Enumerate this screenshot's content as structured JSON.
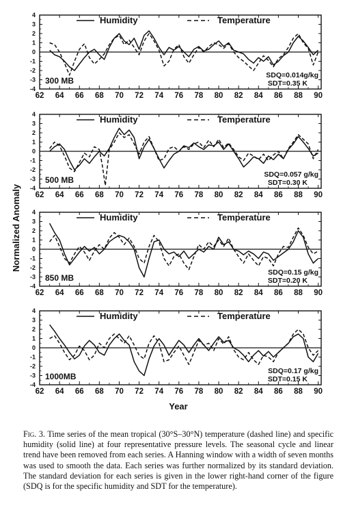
{
  "ylabel": "Normalized Anomaly",
  "xlabel": "Year",
  "xticks": [
    "62",
    "64",
    "66",
    "68",
    "70",
    "72",
    "74",
    "76",
    "78",
    "80",
    "82",
    "84",
    "86",
    "88",
    "90"
  ],
  "yticks": [
    "4",
    "3",
    "2",
    "1",
    "0",
    "-1",
    "-2",
    "-3",
    "-4"
  ],
  "legend": {
    "solid": "Humidity",
    "dashed": "Temperature"
  },
  "caption": {
    "label": "Fig. 3.",
    "text": "Time series of the mean tropical (30°S–30°N) temperature (dashed line) and specific humidity (solid line) at four representative pressure levels. The seasonal cycle and linear trend have been removed from each series. A Hanning window with a width of seven months was used to smooth the data. Each series was further normalized by its standard deviation. The standard deviation for each series is given in the lower right-hand corner of the figure (SDQ is for the specific humidity and SDT for the temperature)."
  },
  "chart_data": [
    {
      "type": "line",
      "panel_label": "300 MB",
      "sd_q": "SDQ=0.014g/kg",
      "sd_t": "SDT=0.35 K",
      "x_range": [
        62,
        90
      ],
      "ylim": [
        -4,
        4
      ],
      "series": [
        {
          "name": "Humidity",
          "style": "solid",
          "x": [
            63,
            63.5,
            64,
            64.5,
            65,
            65.5,
            66,
            66.5,
            67,
            67.5,
            68,
            68.5,
            69,
            69.5,
            70,
            70.5,
            71,
            71.5,
            72,
            72.5,
            73,
            73.5,
            74,
            74.5,
            75,
            75.5,
            76,
            76.5,
            77,
            77.5,
            78,
            78.5,
            79,
            79.5,
            80,
            80.5,
            81,
            81.5,
            82,
            82.5,
            83,
            83.5,
            84,
            84.5,
            85,
            85.5,
            86,
            86.5,
            87,
            87.5,
            88,
            88.5,
            89,
            89.5,
            90
          ],
          "values": [
            0.2,
            -0.3,
            -0.5,
            -1.0,
            -1.6,
            -2.0,
            -1.3,
            -0.6,
            0.0,
            0.3,
            -0.3,
            -0.8,
            0.5,
            1.5,
            2.0,
            1.2,
            0.8,
            1.5,
            0.3,
            1.8,
            2.3,
            1.5,
            0.5,
            -0.3,
            0.5,
            0.2,
            0.6,
            0.0,
            -0.5,
            0.3,
            0.6,
            0.1,
            0.3,
            0.8,
            1.2,
            0.6,
            1.0,
            0.2,
            0.0,
            -0.2,
            -0.8,
            -1.2,
            -0.6,
            -1.0,
            -0.5,
            -1.4,
            -1.0,
            -0.4,
            0.0,
            1.0,
            1.7,
            1.2,
            0.5,
            -0.3,
            0.2
          ]
        },
        {
          "name": "Temperature",
          "style": "dashed",
          "x": [
            63,
            63.5,
            64,
            64.5,
            65,
            65.5,
            66,
            66.5,
            67,
            67.5,
            68,
            68.5,
            69,
            69.5,
            70,
            70.5,
            71,
            71.5,
            72,
            72.5,
            73,
            73.5,
            74,
            74.5,
            75,
            75.5,
            76,
            76.5,
            77,
            77.5,
            78,
            78.5,
            79,
            79.5,
            80,
            80.5,
            81,
            81.5,
            82,
            82.5,
            83,
            83.5,
            84,
            84.5,
            85,
            85.5,
            86,
            86.5,
            87,
            87.5,
            88,
            88.5,
            89,
            89.5,
            90
          ],
          "values": [
            1.0,
            0.8,
            0.0,
            -1.2,
            -2.5,
            -1.0,
            0.3,
            0.9,
            -0.6,
            -1.3,
            -0.8,
            -0.2,
            0.8,
            1.5,
            1.8,
            0.8,
            1.3,
            0.5,
            -0.3,
            1.2,
            2.0,
            1.2,
            0.2,
            -1.5,
            -1.0,
            0.3,
            0.8,
            -0.5,
            -1.2,
            -0.3,
            0.5,
            0.0,
            0.6,
            1.0,
            0.8,
            0.4,
            0.9,
            0.0,
            -0.6,
            -1.0,
            -1.5,
            -2.0,
            -1.2,
            -0.4,
            -0.9,
            -1.6,
            -0.7,
            -0.3,
            0.5,
            1.5,
            2.0,
            1.0,
            0.4,
            -1.4,
            0.0
          ]
        }
      ]
    },
    {
      "type": "line",
      "panel_label": "500 MB",
      "sd_q": "SDQ=0.057 g/kg",
      "sd_t": "SDT=0.30 K",
      "x_range": [
        62,
        90
      ],
      "ylim": [
        -4,
        4
      ],
      "series": [
        {
          "name": "Humidity",
          "style": "solid",
          "x": [
            63,
            63.5,
            64,
            64.5,
            65,
            65.5,
            66,
            66.5,
            67,
            67.5,
            68,
            68.5,
            69,
            69.5,
            70,
            70.5,
            71,
            71.5,
            72,
            72.5,
            73,
            73.5,
            74,
            74.5,
            75,
            75.5,
            76,
            76.5,
            77,
            77.5,
            78,
            78.5,
            79,
            79.5,
            80,
            80.5,
            81,
            81.5,
            82,
            82.5,
            83,
            83.5,
            84,
            84.5,
            85,
            85.5,
            86,
            86.5,
            87,
            87.5,
            88,
            88.5,
            89,
            89.5,
            90
          ],
          "values": [
            0.0,
            0.5,
            0.8,
            0.2,
            -1.0,
            -2.0,
            -1.5,
            -0.8,
            -1.3,
            -0.6,
            0.0,
            -0.5,
            0.3,
            1.5,
            2.5,
            1.8,
            2.3,
            1.5,
            -0.8,
            0.5,
            1.3,
            0.3,
            -0.8,
            -1.8,
            -1.0,
            -0.3,
            0.0,
            0.6,
            0.4,
            0.9,
            0.5,
            0.2,
            0.7,
            0.6,
            1.0,
            0.2,
            0.8,
            0.0,
            -0.8,
            -1.7,
            -1.2,
            -0.6,
            -0.8,
            -1.3,
            -0.5,
            -0.9,
            -0.3,
            -0.8,
            0.2,
            0.8,
            1.6,
            1.0,
            0.3,
            -0.5,
            -0.2
          ]
        },
        {
          "name": "Temperature",
          "style": "dashed",
          "x": [
            63,
            63.5,
            64,
            64.5,
            65,
            65.5,
            66,
            66.5,
            67,
            67.5,
            68,
            68.3,
            68.6,
            69,
            69.5,
            70,
            70.5,
            71,
            71.5,
            72,
            72.5,
            73,
            73.5,
            74,
            74.5,
            75,
            75.5,
            76,
            76.5,
            77,
            77.5,
            78,
            78.5,
            79,
            79.5,
            80,
            80.5,
            81,
            81.5,
            82,
            82.5,
            83,
            83.5,
            84,
            84.5,
            85,
            85.5,
            86,
            86.5,
            87,
            87.5,
            88,
            88.5,
            89,
            89.5,
            90
          ],
          "values": [
            0.3,
            1.0,
            0.6,
            -0.5,
            -1.8,
            -2.2,
            -1.2,
            -0.2,
            -0.6,
            0.5,
            0.2,
            -1.5,
            -3.7,
            0.2,
            1.0,
            2.0,
            1.5,
            1.8,
            0.8,
            -0.3,
            1.0,
            1.6,
            0.3,
            -1.0,
            -0.8,
            0.3,
            0.5,
            0.0,
            0.5,
            0.2,
            0.8,
            1.0,
            0.4,
            1.2,
            0.5,
            1.3,
            0.4,
            0.9,
            0.2,
            -0.6,
            -1.0,
            -0.2,
            -0.5,
            -0.9,
            -0.3,
            -1.0,
            -0.4,
            0.0,
            -0.8,
            0.3,
            1.0,
            1.8,
            1.3,
            0.8,
            -0.8,
            0.2
          ]
        }
      ]
    },
    {
      "type": "line",
      "panel_label": "850 MB",
      "sd_q": "SDQ=0.15 g/kg",
      "sd_t": "SDT=0.20 K",
      "x_range": [
        62,
        90
      ],
      "ylim": [
        -4,
        4
      ],
      "series": [
        {
          "name": "Humidity",
          "style": "solid",
          "x": [
            63,
            63.5,
            64,
            64.5,
            65,
            65.5,
            66,
            66.5,
            67,
            67.5,
            68,
            68.5,
            69,
            69.5,
            70,
            70.5,
            71,
            71.5,
            72,
            72.5,
            73,
            73.5,
            74,
            74.5,
            75,
            75.5,
            76,
            76.5,
            77,
            77.5,
            78,
            78.5,
            79,
            79.5,
            80,
            80.5,
            81,
            81.5,
            82,
            82.5,
            83,
            83.5,
            84,
            84.5,
            85,
            85.5,
            86,
            86.5,
            87,
            87.5,
            88,
            88.5,
            89,
            89.5,
            90
          ],
          "values": [
            2.8,
            1.8,
            1.0,
            -0.5,
            -1.7,
            -1.0,
            -0.3,
            0.3,
            -0.2,
            0.2,
            -0.5,
            0.0,
            0.8,
            1.2,
            1.5,
            1.3,
            0.8,
            0.0,
            -2.0,
            -3.0,
            -1.0,
            0.8,
            1.0,
            0.0,
            -0.5,
            -0.3,
            -0.8,
            -0.2,
            -1.0,
            -0.5,
            0.0,
            -0.3,
            0.3,
            0.0,
            1.3,
            0.5,
            0.8,
            0.0,
            -0.2,
            -0.6,
            -0.2,
            -0.5,
            -1.0,
            -0.3,
            -0.5,
            -1.2,
            -0.8,
            -0.4,
            0.0,
            0.8,
            2.0,
            1.3,
            -0.5,
            -1.5,
            -1.0
          ]
        },
        {
          "name": "Temperature",
          "style": "dashed",
          "x": [
            63,
            63.5,
            64,
            64.5,
            65,
            65.5,
            66,
            66.5,
            67,
            67.5,
            68,
            68.5,
            69,
            69.5,
            70,
            70.5,
            71,
            71.5,
            72,
            72.5,
            73,
            73.5,
            74,
            74.5,
            75,
            75.5,
            76,
            76.5,
            77,
            77.5,
            78,
            78.5,
            79,
            79.5,
            80,
            80.5,
            81,
            81.5,
            82,
            82.5,
            83,
            83.5,
            84,
            84.5,
            85,
            85.5,
            86,
            86.5,
            87,
            87.5,
            88,
            88.5,
            89,
            89.5,
            90
          ],
          "values": [
            0.8,
            1.5,
            0.3,
            -1.0,
            -1.5,
            -0.5,
            0.3,
            -0.3,
            -1.2,
            -0.2,
            0.5,
            0.0,
            1.2,
            1.8,
            1.3,
            0.5,
            1.2,
            0.3,
            -1.0,
            -1.5,
            0.3,
            1.5,
            0.8,
            -1.0,
            -1.8,
            -0.8,
            -0.5,
            -1.5,
            -2.2,
            -0.8,
            0.5,
            0.0,
            0.8,
            0.3,
            1.0,
            0.3,
            1.2,
            0.0,
            -0.8,
            -1.5,
            -0.5,
            -1.2,
            -1.8,
            -0.8,
            -1.0,
            -1.8,
            -0.5,
            0.3,
            0.2,
            1.3,
            2.3,
            1.5,
            0.2,
            -0.5,
            -0.2
          ]
        }
      ]
    },
    {
      "type": "line",
      "panel_label": "1000MB",
      "sd_q": "SDQ=0.17 g/kg",
      "sd_t": "SDT=0.15 K",
      "x_range": [
        62,
        90
      ],
      "ylim": [
        -4,
        4
      ],
      "series": [
        {
          "name": "Humidity",
          "style": "solid",
          "x": [
            63,
            63.5,
            64,
            64.5,
            65,
            65.5,
            66,
            66.5,
            67,
            67.5,
            68,
            68.5,
            69,
            69.5,
            70,
            70.5,
            71,
            71.5,
            72,
            72.5,
            73,
            73.5,
            74,
            74.5,
            75,
            75.5,
            76,
            76.5,
            77,
            77.5,
            78,
            78.5,
            79,
            79.5,
            80,
            80.5,
            81,
            81.5,
            82,
            82.5,
            83,
            83.5,
            84,
            84.5,
            85,
            85.5,
            86,
            86.5,
            87,
            87.5,
            88,
            88.5,
            89,
            89.5,
            90
          ],
          "values": [
            2.5,
            1.8,
            1.0,
            0.3,
            -0.5,
            -1.2,
            -0.8,
            0.2,
            0.8,
            0.3,
            -0.5,
            -0.8,
            0.3,
            1.0,
            1.5,
            0.8,
            0.3,
            -1.5,
            -2.5,
            -3.0,
            -1.2,
            0.2,
            1.0,
            0.3,
            -0.8,
            0.0,
            0.8,
            0.3,
            -0.5,
            0.3,
            1.0,
            0.3,
            -0.3,
            0.5,
            1.2,
            0.6,
            0.8,
            0.0,
            -0.3,
            -0.8,
            -1.5,
            -0.8,
            -0.3,
            -0.9,
            -0.4,
            -1.0,
            -0.5,
            0.0,
            0.5,
            1.2,
            1.5,
            1.0,
            -1.0,
            -1.5,
            -0.6
          ]
        },
        {
          "name": "Temperature",
          "style": "dashed",
          "x": [
            63,
            63.5,
            64,
            64.5,
            65,
            65.5,
            66,
            66.5,
            67,
            67.5,
            68,
            68.5,
            69,
            69.5,
            70,
            70.5,
            71,
            71.5,
            72,
            72.5,
            73,
            73.5,
            74,
            74.5,
            75,
            75.5,
            76,
            76.5,
            77,
            77.5,
            78,
            78.5,
            79,
            79.5,
            80,
            80.5,
            81,
            81.5,
            82,
            82.5,
            83,
            83.5,
            84,
            84.5,
            85,
            85.5,
            86,
            86.5,
            87,
            87.5,
            88,
            88.5,
            89,
            89.5,
            90
          ],
          "values": [
            1.0,
            1.3,
            0.5,
            -0.5,
            -1.3,
            -0.8,
            0.2,
            -0.3,
            -1.3,
            -0.8,
            0.5,
            0.0,
            1.0,
            1.5,
            1.0,
            0.5,
            1.3,
            0.3,
            -0.8,
            -1.2,
            0.5,
            1.3,
            0.5,
            -1.5,
            -1.3,
            -0.5,
            0.2,
            -0.8,
            -1.8,
            -0.5,
            0.8,
            0.3,
            0.5,
            -0.3,
            1.0,
            0.4,
            1.2,
            -0.2,
            -1.0,
            -1.3,
            -0.5,
            -1.3,
            -1.8,
            -0.8,
            -1.0,
            -1.5,
            -0.5,
            0.0,
            0.5,
            1.5,
            2.0,
            1.5,
            0.0,
            -0.8,
            -0.3
          ]
        }
      ]
    }
  ]
}
